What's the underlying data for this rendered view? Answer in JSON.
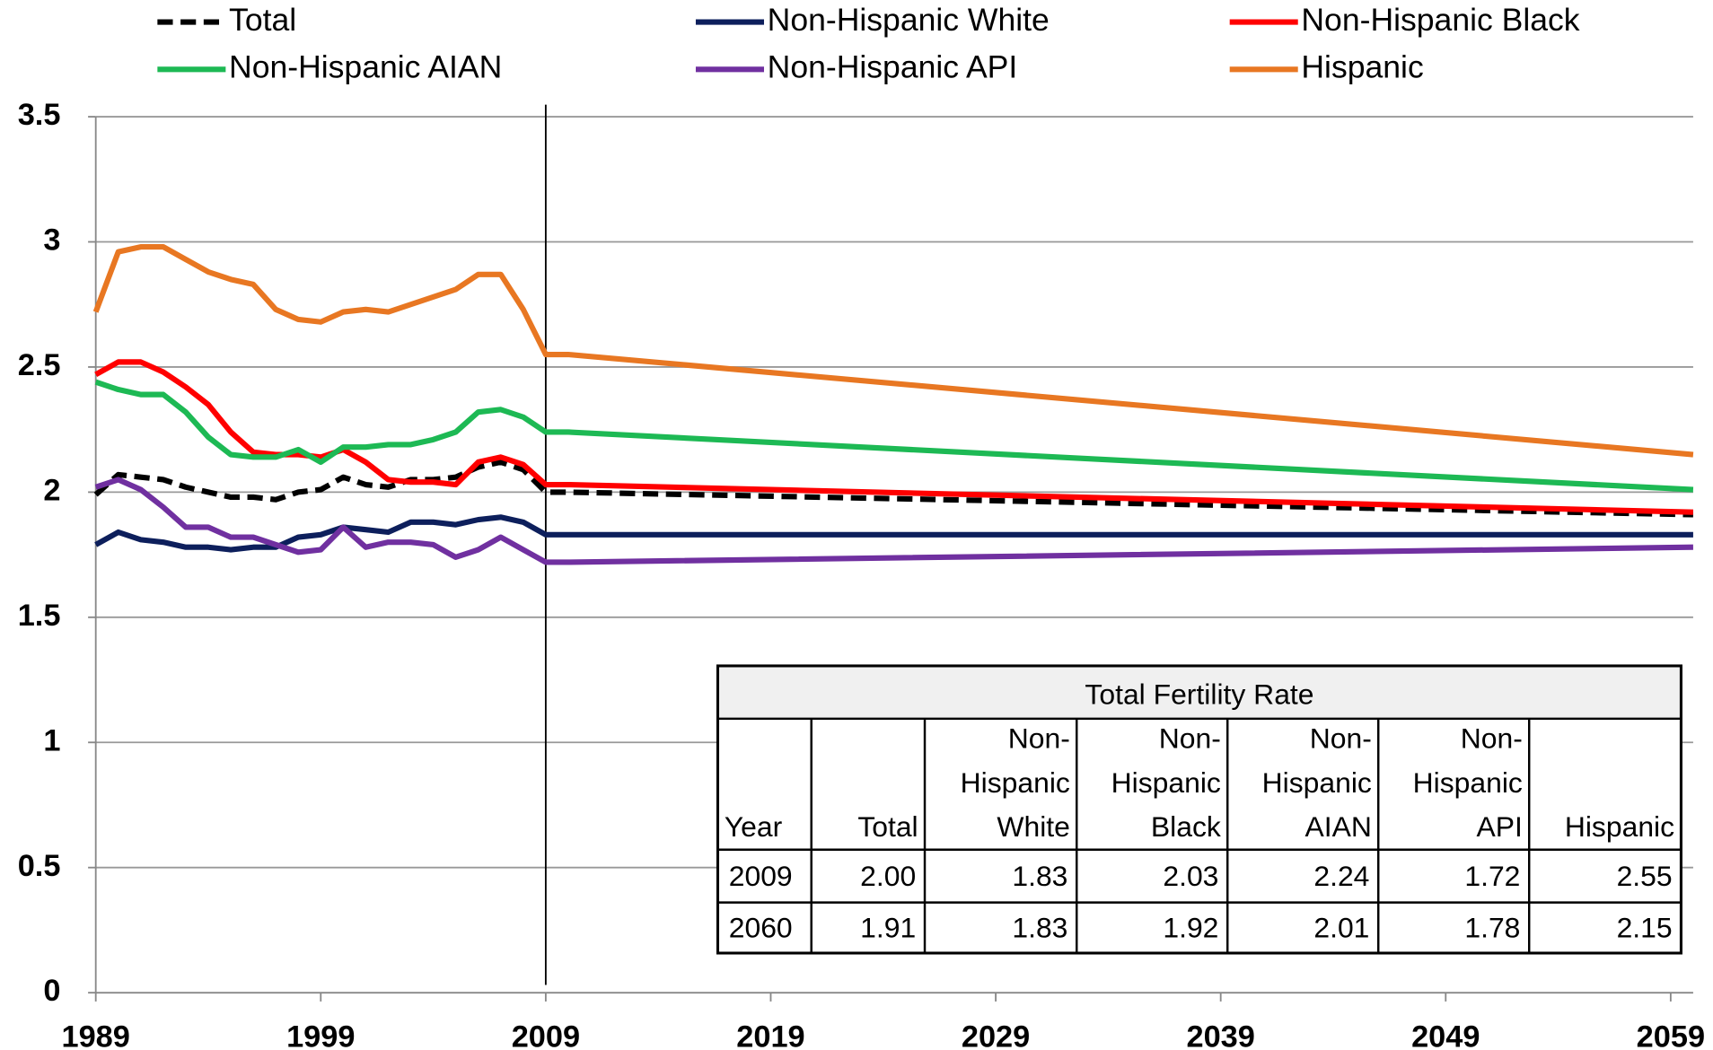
{
  "chart_data": {
    "type": "line",
    "x": [
      1989,
      1990,
      1991,
      1992,
      1993,
      1994,
      1995,
      1996,
      1997,
      1998,
      1999,
      2000,
      2001,
      2002,
      2003,
      2004,
      2005,
      2006,
      2007,
      2008,
      2009,
      2010,
      2060
    ],
    "series": [
      {
        "name": "Total",
        "color": "#000000",
        "dashed": true,
        "values": [
          1.99,
          2.07,
          2.06,
          2.05,
          2.02,
          2.0,
          1.98,
          1.98,
          1.97,
          2.0,
          2.01,
          2.06,
          2.03,
          2.02,
          2.05,
          2.05,
          2.06,
          2.1,
          2.12,
          2.09,
          2.0,
          2.0,
          1.91
        ]
      },
      {
        "name": "Non-Hispanic White",
        "color": "#0d1f5c",
        "values": [
          1.79,
          1.84,
          1.81,
          1.8,
          1.78,
          1.78,
          1.77,
          1.78,
          1.78,
          1.82,
          1.83,
          1.86,
          1.85,
          1.84,
          1.88,
          1.88,
          1.87,
          1.89,
          1.9,
          1.88,
          1.83,
          1.83,
          1.83
        ]
      },
      {
        "name": "Non-Hispanic Black",
        "color": "#ff0000",
        "values": [
          2.47,
          2.52,
          2.52,
          2.48,
          2.42,
          2.35,
          2.24,
          2.16,
          2.15,
          2.15,
          2.14,
          2.17,
          2.12,
          2.05,
          2.04,
          2.04,
          2.03,
          2.12,
          2.14,
          2.11,
          2.03,
          2.03,
          1.92
        ]
      },
      {
        "name": "Non-Hispanic AIAN",
        "color": "#1db954",
        "values": [
          2.44,
          2.41,
          2.39,
          2.39,
          2.32,
          2.22,
          2.15,
          2.14,
          2.14,
          2.17,
          2.12,
          2.18,
          2.18,
          2.19,
          2.19,
          2.21,
          2.24,
          2.32,
          2.33,
          2.3,
          2.24,
          2.24,
          2.01
        ]
      },
      {
        "name": "Non-Hispanic API",
        "color": "#7030a0",
        "values": [
          2.02,
          2.05,
          2.01,
          1.94,
          1.86,
          1.86,
          1.82,
          1.82,
          1.79,
          1.76,
          1.77,
          1.86,
          1.78,
          1.8,
          1.8,
          1.79,
          1.74,
          1.77,
          1.82,
          1.77,
          1.72,
          1.72,
          1.78
        ]
      },
      {
        "name": "Hispanic",
        "color": "#e87722",
        "values": [
          2.72,
          2.96,
          2.98,
          2.98,
          2.93,
          2.88,
          2.85,
          2.83,
          2.73,
          2.69,
          2.68,
          2.72,
          2.73,
          2.72,
          2.75,
          2.78,
          2.81,
          2.87,
          2.87,
          2.73,
          2.55,
          2.55,
          2.15
        ]
      }
    ],
    "xlim": [
      1989,
      2060
    ],
    "xticks": [
      1989,
      1999,
      2009,
      2019,
      2029,
      2039,
      2049,
      2059
    ],
    "ylim": [
      0,
      3.5
    ],
    "yticks": [
      0,
      0.5,
      1,
      1.5,
      2,
      2.5,
      3,
      3.5
    ],
    "grid": true,
    "vline": 2009,
    "table": {
      "title": "Total Fertility Rate",
      "header": [
        [
          "Year"
        ],
        [
          "Total"
        ],
        [
          "Non-",
          "Hispanic",
          "White"
        ],
        [
          "Non-",
          "Hispanic",
          "Black"
        ],
        [
          "Non-",
          "Hispanic",
          "AIAN"
        ],
        [
          "Non-",
          "Hispanic",
          "API"
        ],
        [
          "Hispanic"
        ]
      ],
      "rows": [
        [
          "2009",
          "2.00",
          "1.83",
          "2.03",
          "2.24",
          "1.72",
          "2.55"
        ],
        [
          "2060",
          "1.91",
          "1.83",
          "1.92",
          "2.01",
          "1.78",
          "2.15"
        ]
      ]
    }
  }
}
